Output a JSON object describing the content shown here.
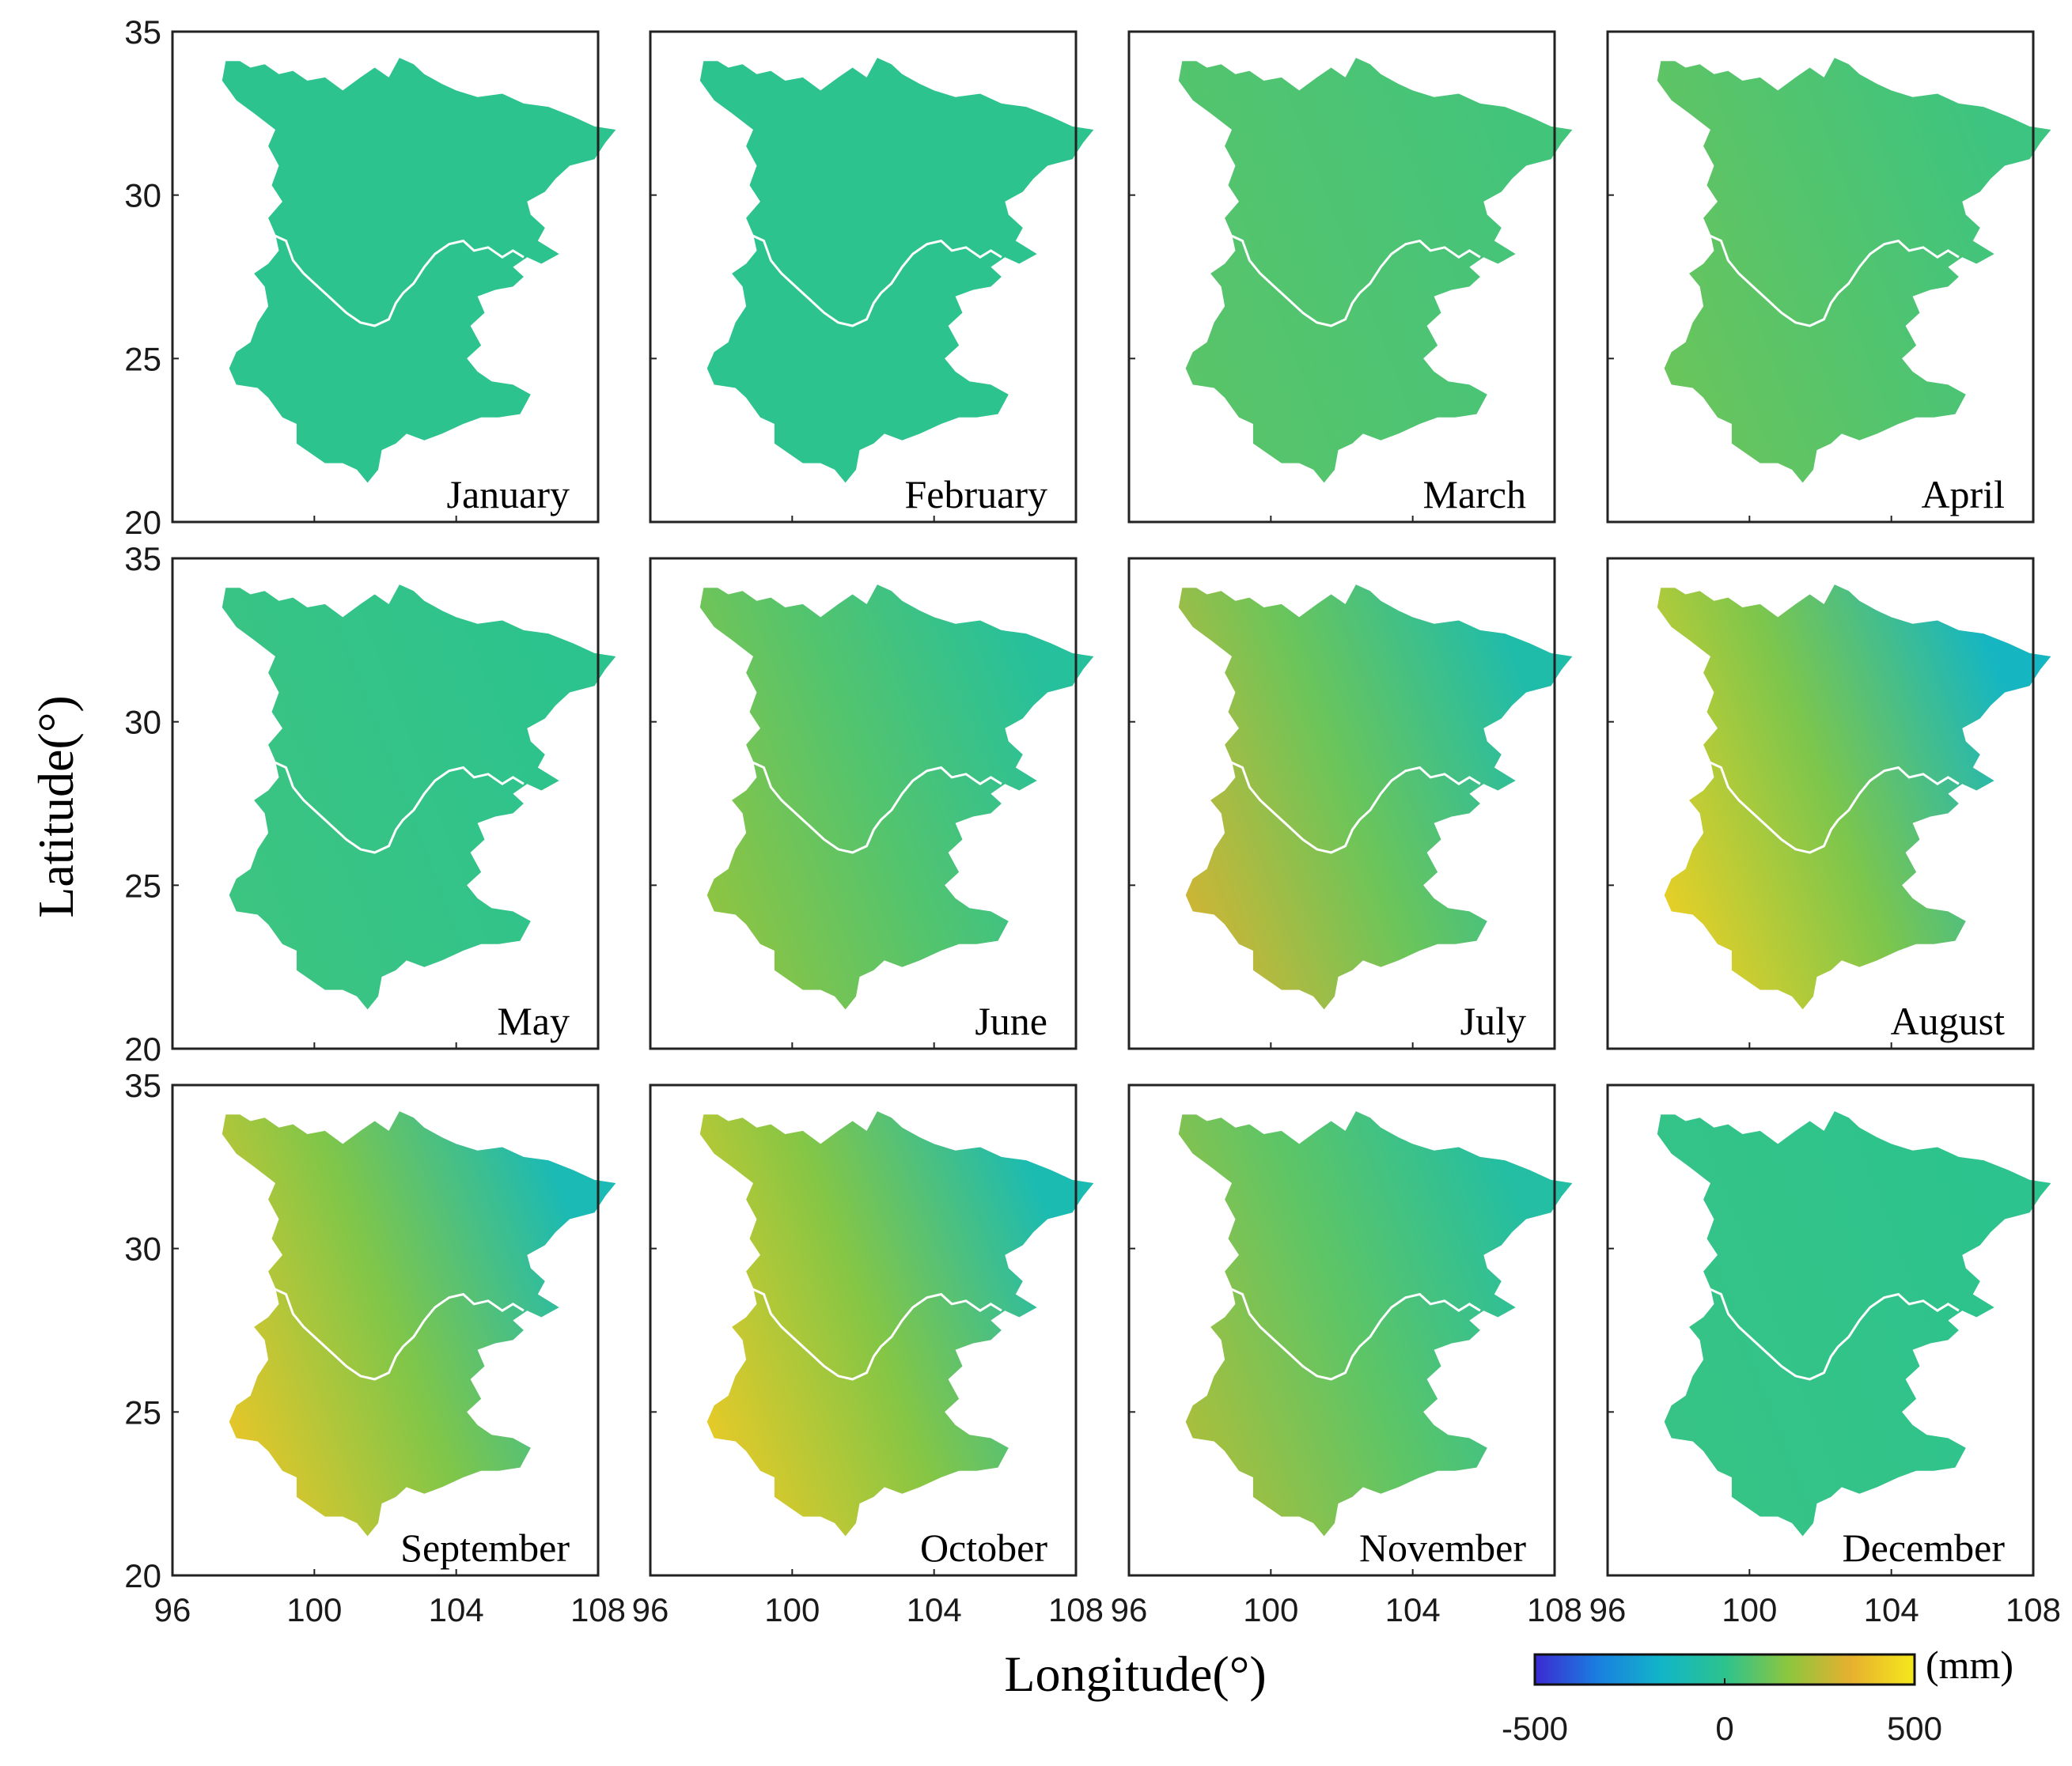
{
  "chart_data": {
    "type": "heatmap",
    "title": "",
    "xlabel": "Longitude(°)",
    "ylabel": "Latitude(°)",
    "xlim": [
      96,
      108
    ],
    "ylim": [
      20,
      35
    ],
    "xticks": [
      "96",
      "100",
      "104",
      "108"
    ],
    "yticks": [
      "20",
      "25",
      "30",
      "35"
    ],
    "colorbar": {
      "unit": "(mm)",
      "min": -500,
      "max": 500,
      "ticks": [
        "-500",
        "0",
        "500"
      ],
      "colors": [
        "#3b2ad1",
        "#1a7fe0",
        "#12b5c8",
        "#2cc38e",
        "#8cc63f",
        "#e7b02f",
        "#f5e81c"
      ]
    },
    "panels": [
      {
        "month": "January",
        "west": 0,
        "east": 0,
        "border": "#ffffff"
      },
      {
        "month": "February",
        "west": 0,
        "east": 0,
        "border": "#ffffff"
      },
      {
        "month": "March",
        "west": 80,
        "east": 40,
        "border": "#ffffff"
      },
      {
        "month": "April",
        "west": 110,
        "east": 30,
        "border": "#ffffff"
      },
      {
        "month": "May",
        "west": 30,
        "east": 0,
        "border": "#ffffff"
      },
      {
        "month": "June",
        "west": 180,
        "east": -40,
        "border": "#ffffff"
      },
      {
        "month": "July",
        "west": 300,
        "east": -80,
        "border": "#ffffff"
      },
      {
        "month": "August",
        "west": 430,
        "east": -150,
        "border": "#ffffff"
      },
      {
        "month": "September",
        "west": 400,
        "east": -110,
        "border": "#ffffff"
      },
      {
        "month": "October",
        "west": 410,
        "east": -100,
        "border": "#ffffff"
      },
      {
        "month": "November",
        "west": 230,
        "east": -60,
        "border": "#ffffff"
      },
      {
        "month": "December",
        "west": 20,
        "east": 0,
        "border": "#ffffff"
      }
    ]
  }
}
